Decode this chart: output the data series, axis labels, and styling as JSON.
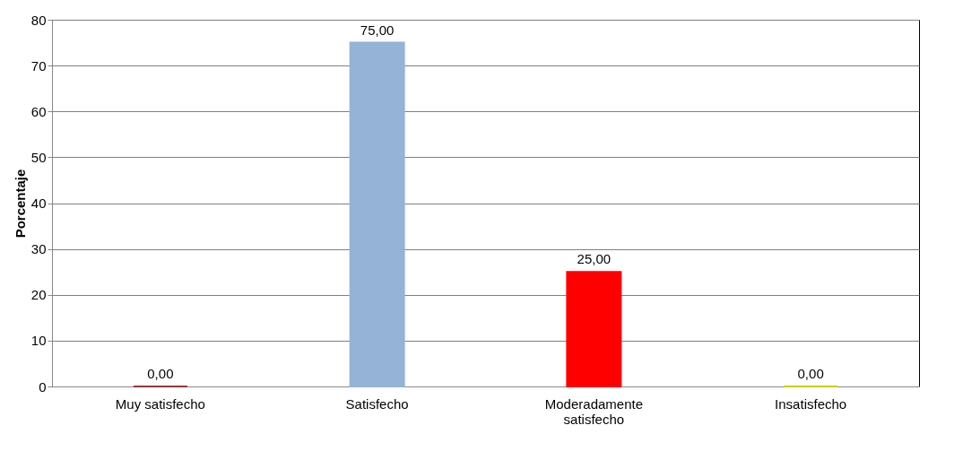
{
  "chart_data": {
    "type": "bar",
    "categories": [
      "Muy satisfecho",
      "Satisfecho",
      "Moderadamente satisfecho",
      "Insatisfecho"
    ],
    "values": [
      0,
      75,
      25,
      0
    ],
    "colors": [
      "#953735",
      "#95b3d7",
      "#ff0000",
      "#cccc00"
    ],
    "value_labels": [
      "0,00",
      "75,00",
      "25,00",
      "0,00"
    ],
    "ylabel": "Porcentaje",
    "ylim": [
      0,
      80
    ],
    "yticks": [
      0,
      10,
      20,
      30,
      40,
      50,
      60,
      70,
      80
    ],
    "grid": "y"
  }
}
